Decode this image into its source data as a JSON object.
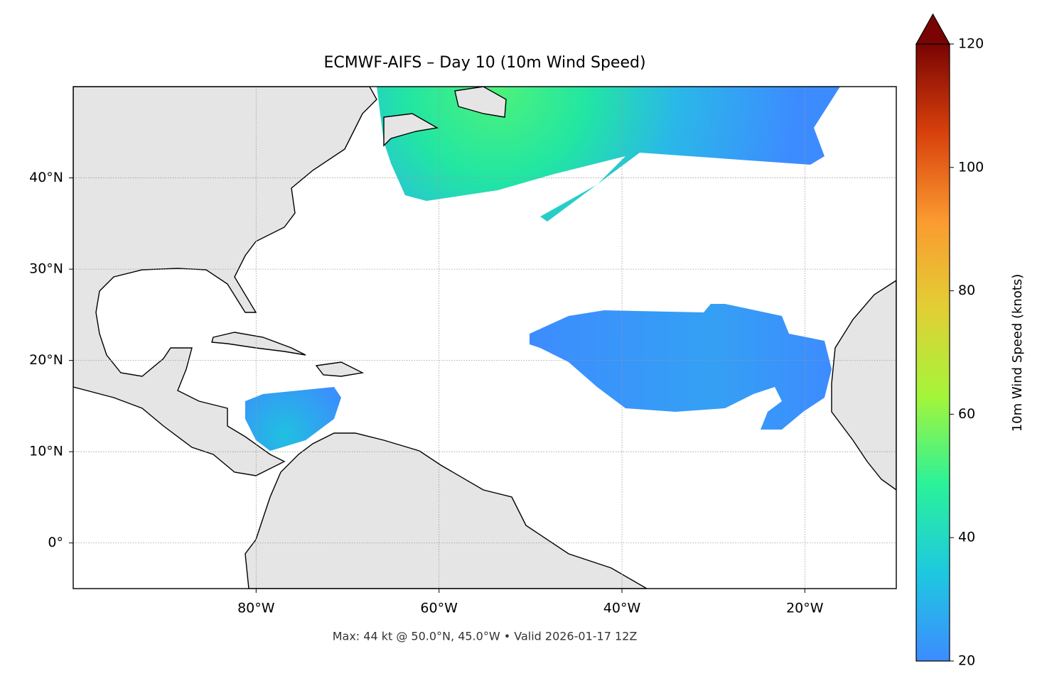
{
  "chart_data": {
    "type": "map",
    "title": "ECMWF-AIFS – Day 10 (10m Wind Speed)",
    "footer": "Max: 44 kt @ 50.0°N, 45.0°W • Valid 2026-01-17 12Z",
    "xlim": [
      -100,
      -10
    ],
    "ylim": [
      -5,
      50
    ],
    "xticks": [
      {
        "value": -80,
        "label": "80°W"
      },
      {
        "value": -60,
        "label": "60°W"
      },
      {
        "value": -40,
        "label": "40°W"
      },
      {
        "value": -20,
        "label": "20°W"
      }
    ],
    "yticks": [
      {
        "value": 0,
        "label": "0°"
      },
      {
        "value": 10,
        "label": "10°N"
      },
      {
        "value": 20,
        "label": "20°N"
      },
      {
        "value": 30,
        "label": "30°N"
      },
      {
        "value": 40,
        "label": "40°N"
      }
    ],
    "grid": true,
    "colorbar": {
      "label": "10m Wind Speed (knots)",
      "lim": [
        20,
        120
      ],
      "ticks": [
        20,
        40,
        60,
        80,
        100,
        120
      ],
      "colors": [
        "#3d8cff",
        "#1ec8e0",
        "#2af29a",
        "#a4f53a",
        "#e2cf34",
        "#fb9a30",
        "#d8400c",
        "#7a0403"
      ]
    }
  }
}
